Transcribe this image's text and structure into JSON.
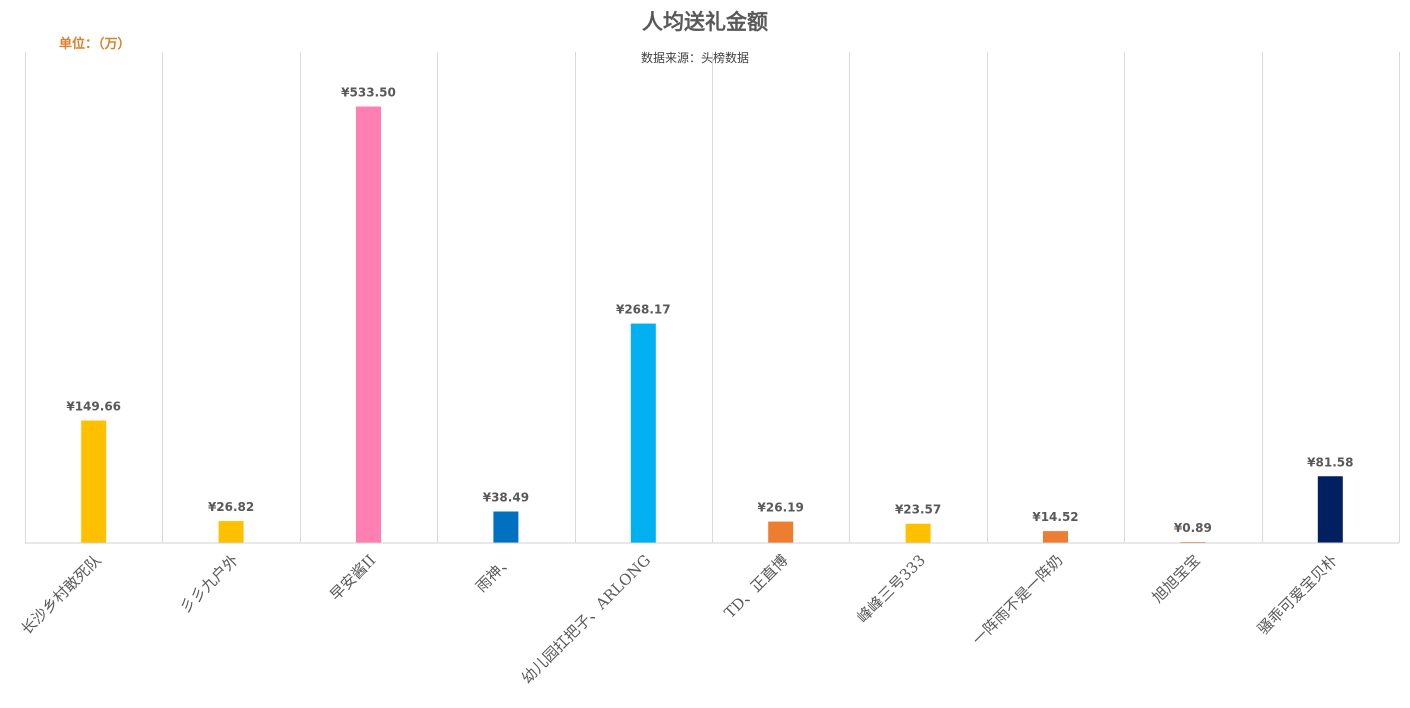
{
  "chart_data": {
    "type": "bar",
    "title": "人均送礼金额",
    "subtitle": "数据来源：头榜数据",
    "unit_label": "单位：（万）",
    "unit_label_color": "#D9822B",
    "categories": [
      "长沙乡村敢死队",
      "彡彡九户外",
      "早安酱II",
      "雨神、",
      "幼儿园扛把子、ARLONG",
      "TD、正直博",
      "峰峰三号333",
      "一阵雨不是一阵奶",
      "旭旭宝宝",
      "骚乖可爱宝贝朴"
    ],
    "values": [
      149.66,
      26.82,
      533.5,
      38.49,
      268.17,
      26.19,
      23.57,
      14.52,
      0.89,
      81.58
    ],
    "data_labels": [
      "¥149.66",
      "¥26.82",
      "¥533.50",
      "¥38.49",
      "¥268.17",
      "¥26.19",
      "¥23.57",
      "¥14.52",
      "¥0.89",
      "¥81.58"
    ],
    "bar_colors": [
      "#FFC000",
      "#FFC000",
      "#FF7FB3",
      "#0070C0",
      "#00B0F0",
      "#ED7D31",
      "#FFC000",
      "#ED7D31",
      "#ED7D31",
      "#002060"
    ],
    "ylim": [
      0,
      600
    ],
    "grid": "vertical category separators",
    "legend": "none"
  }
}
